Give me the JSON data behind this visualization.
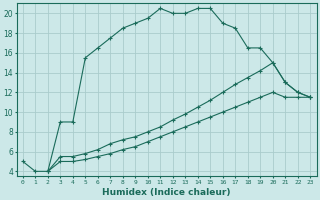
{
  "xlabel": "Humidex (Indice chaleur)",
  "background_color": "#cce8e8",
  "grid_color": "#aacccc",
  "line_color": "#1a6b5a",
  "xlim": [
    -0.5,
    23.5
  ],
  "ylim": [
    3.5,
    21.0
  ],
  "xticks": [
    0,
    1,
    2,
    3,
    4,
    5,
    6,
    7,
    8,
    9,
    10,
    11,
    12,
    13,
    14,
    15,
    16,
    17,
    18,
    19,
    20,
    21,
    22,
    23
  ],
  "yticks": [
    4,
    6,
    8,
    10,
    12,
    14,
    16,
    18,
    20
  ],
  "line1_x": [
    0,
    1,
    2,
    3,
    4,
    5,
    6,
    7,
    8,
    9,
    10,
    11,
    12,
    13,
    14,
    15,
    16,
    17,
    18,
    19,
    20,
    21,
    22,
    23
  ],
  "line1_y": [
    5.0,
    4.0,
    4.0,
    9.0,
    9.0,
    15.5,
    16.5,
    17.5,
    18.5,
    19.0,
    19.5,
    20.5,
    20.0,
    20.0,
    20.5,
    20.5,
    19.0,
    18.5,
    16.5,
    16.5,
    15.0,
    13.0,
    12.0,
    11.5
  ],
  "line2_x": [
    2,
    3,
    4,
    5,
    6,
    7,
    8,
    9,
    10,
    11,
    12,
    13,
    14,
    15,
    16,
    17,
    18,
    19,
    20,
    21,
    22,
    23
  ],
  "line2_y": [
    4.0,
    5.5,
    5.5,
    5.8,
    6.2,
    6.8,
    7.2,
    7.5,
    8.0,
    8.5,
    9.2,
    9.8,
    10.5,
    11.2,
    12.0,
    12.8,
    13.5,
    14.2,
    15.0,
    13.0,
    12.0,
    11.5
  ],
  "line3_x": [
    2,
    3,
    4,
    5,
    6,
    7,
    8,
    9,
    10,
    11,
    12,
    13,
    14,
    15,
    16,
    17,
    18,
    19,
    20,
    21,
    22,
    23
  ],
  "line3_y": [
    4.0,
    5.0,
    5.0,
    5.2,
    5.5,
    5.8,
    6.2,
    6.5,
    7.0,
    7.5,
    8.0,
    8.5,
    9.0,
    9.5,
    10.0,
    10.5,
    11.0,
    11.5,
    12.0,
    11.5,
    11.5,
    11.5
  ]
}
